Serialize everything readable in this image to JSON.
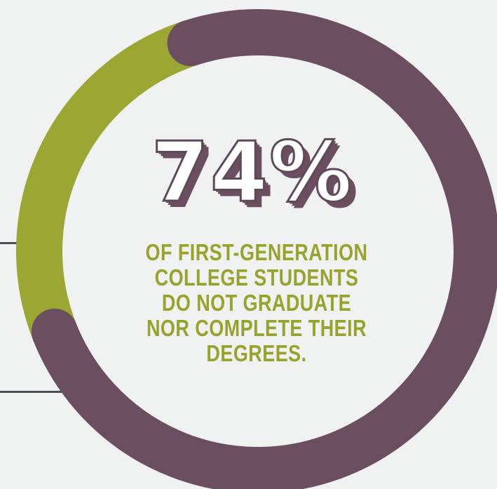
{
  "chart_data": {
    "type": "pie",
    "value_percent": 74,
    "value_label": "74%",
    "caption": "OF FIRST-GENERATION COLLEGE STUDENTS DO NOT GRADUATE NOR COMPLETE THEIR DEGREES.",
    "segments": [
      {
        "value": 74,
        "color": "#6b4e5f"
      },
      {
        "value": 26,
        "color": "#9ca632"
      }
    ]
  },
  "colors": {
    "primary": "#6b4e5f",
    "accent": "#9ca632",
    "background": "#f0f2f2",
    "rule": "#4a4e54"
  }
}
